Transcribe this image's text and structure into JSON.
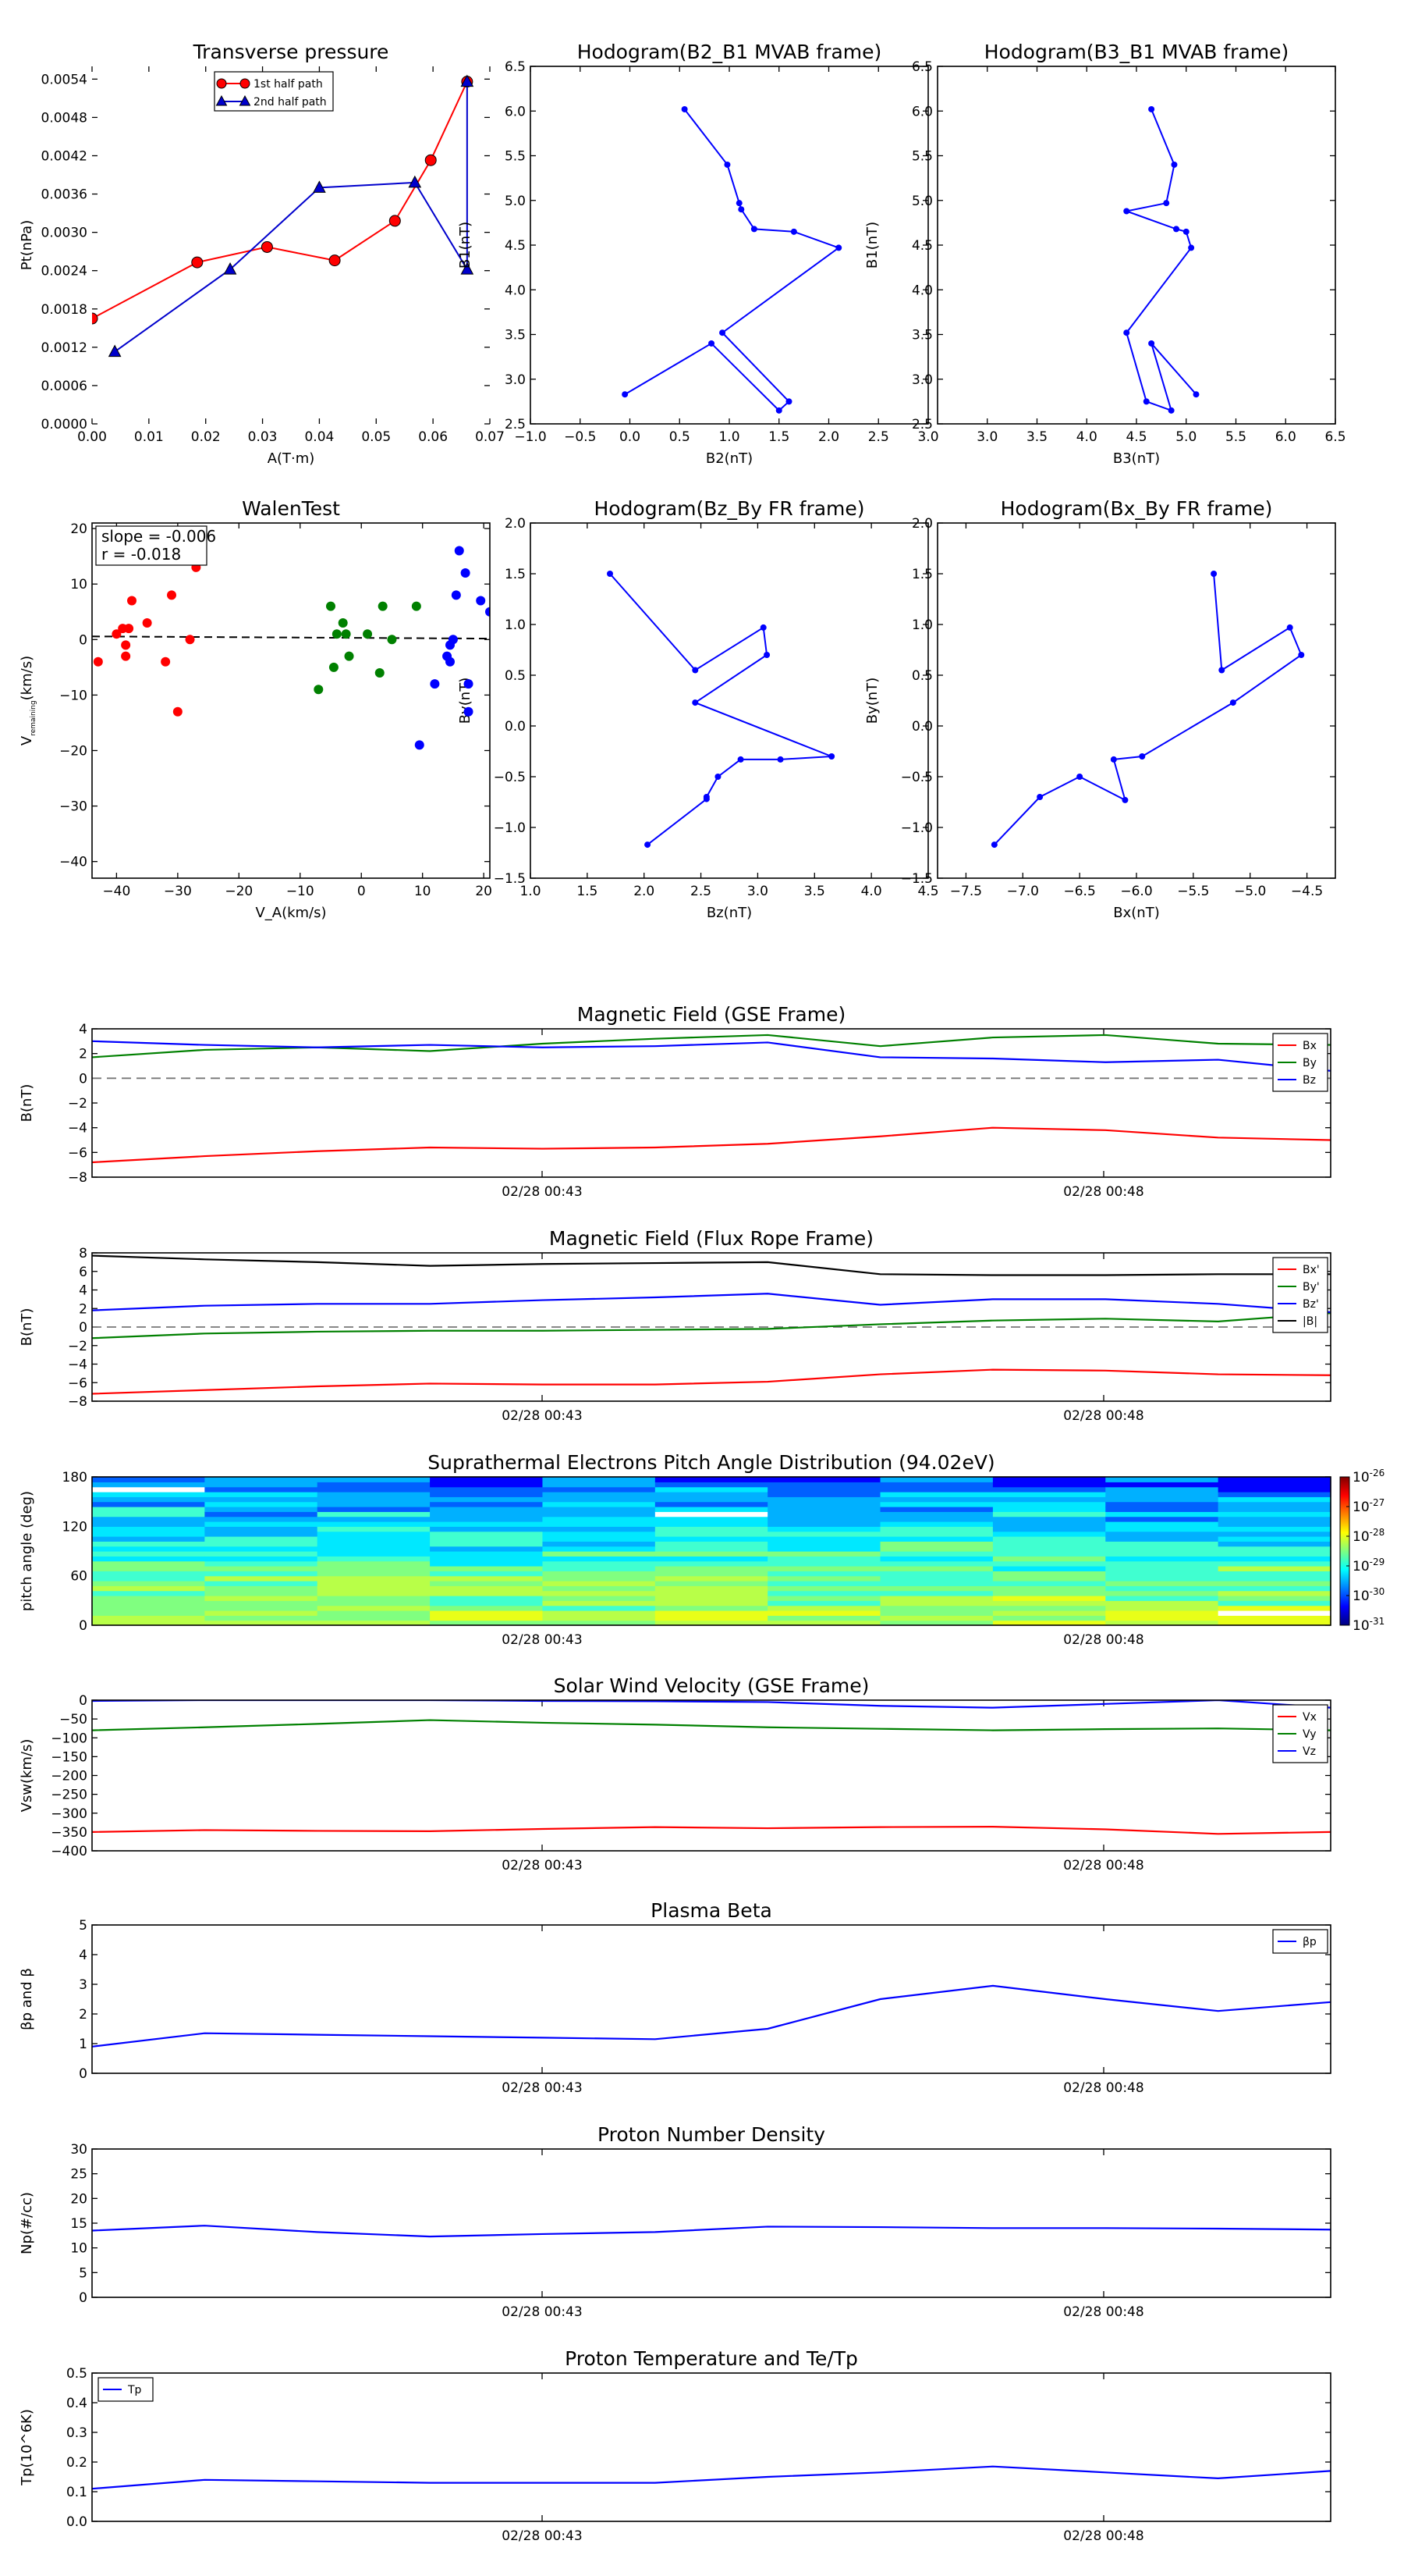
{
  "figure": {
    "time_ticks": [
      "02/28 00:43",
      "02/28 00:48"
    ]
  },
  "chart_data": [
    {
      "id": "transverse-pressure",
      "type": "scatter",
      "title": "Transverse pressure",
      "xlabel": "A(T·m)",
      "ylabel": "Pt(nPa)",
      "xlim": [
        0,
        0.07
      ],
      "ylim": [
        0,
        0.0056
      ],
      "xticks": [
        "0.00",
        "0.01",
        "0.02",
        "0.03",
        "0.04",
        "0.05",
        "0.06",
        "0.07"
      ],
      "yticks": [
        "0.0000",
        "0.0006",
        "0.0012",
        "0.0018",
        "0.0024",
        "0.0030",
        "0.0036",
        "0.0042",
        "0.0048",
        "0.0054"
      ],
      "legend_position": "top-center",
      "series": [
        {
          "name": "1st half path",
          "color": "#ff0000",
          "marker": "circle",
          "x": [
            0.0,
            0.0185,
            0.0308,
            0.0427,
            0.0533,
            0.0596,
            0.066
          ],
          "y": [
            0.00165,
            0.00253,
            0.00277,
            0.00256,
            0.00318,
            0.00413,
            0.00536
          ]
        },
        {
          "name": "2nd half path",
          "color": "#0000cc",
          "marker": "triangle",
          "x": [
            0.066,
            0.066,
            0.0568,
            0.04,
            0.0243,
            0.004
          ],
          "y": [
            0.00536,
            0.00242,
            0.00378,
            0.0037,
            0.00242,
            0.00113
          ]
        }
      ]
    },
    {
      "id": "hodogram-b2-b1",
      "type": "line",
      "title": "Hodogram(B2_B1 MVAB frame)",
      "xlabel": "B2(nT)",
      "ylabel": "B1(nT)",
      "xlim": [
        -1.0,
        3.0
      ],
      "ylim": [
        2.5,
        6.5
      ],
      "xticks": [
        "−1.0",
        "−0.5",
        "0.0",
        "0.5",
        "1.0",
        "1.5",
        "2.0",
        "2.5",
        "3.0"
      ],
      "yticks": [
        "2.5",
        "3.0",
        "3.5",
        "4.0",
        "4.5",
        "5.0",
        "5.5",
        "6.0",
        "6.5"
      ],
      "series": [
        {
          "color": "#0000ff",
          "x": [
            0.55,
            0.98,
            1.1,
            1.12,
            1.25,
            1.65,
            2.1,
            0.93,
            1.6,
            1.5,
            0.82,
            -0.05
          ],
          "y": [
            6.02,
            5.4,
            4.97,
            4.9,
            4.68,
            4.65,
            4.47,
            3.52,
            2.75,
            2.65,
            3.4,
            2.83
          ]
        }
      ]
    },
    {
      "id": "hodogram-b3-b1",
      "type": "line",
      "title": "Hodogram(B3_B1 MVAB frame)",
      "xlabel": "B3(nT)",
      "ylabel": "B1(nT)",
      "xlim": [
        2.5,
        6.5
      ],
      "ylim": [
        2.5,
        6.5
      ],
      "xticks": [
        "3.0",
        "3.5",
        "4.0",
        "4.5",
        "5.0",
        "5.5",
        "6.0",
        "6.5"
      ],
      "yticks": [
        "2.5",
        "3.0",
        "3.5",
        "4.0",
        "4.5",
        "5.0",
        "5.5",
        "6.0",
        "6.5"
      ],
      "series": [
        {
          "color": "#0000ff",
          "x": [
            4.65,
            4.88,
            4.8,
            4.4,
            4.9,
            5.0,
            5.05,
            4.4,
            4.6,
            4.85,
            4.65,
            5.1
          ],
          "y": [
            6.02,
            5.4,
            4.97,
            4.88,
            4.68,
            4.65,
            4.47,
            3.52,
            2.75,
            2.65,
            3.4,
            2.83
          ]
        }
      ]
    },
    {
      "id": "walen-test",
      "type": "scatter",
      "title": "WalenTest",
      "xlabel": "V_A(km/s)",
      "ylabel": "V_remaining(km/s)",
      "xlim": [
        -44,
        21
      ],
      "ylim": [
        -43,
        21
      ],
      "xticks": [
        "−40",
        "−30",
        "−20",
        "−10",
        "0",
        "10",
        "20"
      ],
      "yticks": [
        "−40",
        "−30",
        "−20",
        "−10",
        "0",
        "10",
        "20"
      ],
      "annotation": {
        "slope": "slope = -0.006",
        "r": "r = -0.018"
      },
      "fit_line": {
        "slope": -0.006,
        "intercept": 0.3
      },
      "series": [
        {
          "color": "#ff0000",
          "x": [
            -43,
            -40,
            -39,
            -38.5,
            -38.5,
            -38,
            -37.5,
            -35,
            -32,
            -31,
            -30,
            -28,
            -27
          ],
          "y": [
            -4,
            1,
            2,
            -1,
            -3,
            2,
            7,
            3,
            -4,
            8,
            -13,
            0,
            13
          ]
        },
        {
          "color": "#008000",
          "x": [
            -7,
            -5,
            -4.5,
            -4,
            -3,
            -2.5,
            -2,
            1,
            3,
            3.5,
            5,
            9
          ],
          "y": [
            -9,
            6,
            -5,
            1,
            3,
            1,
            -3,
            1,
            -6,
            6,
            0,
            6
          ]
        },
        {
          "color": "#0000ff",
          "x": [
            9.5,
            12,
            14,
            14.5,
            14.5,
            15,
            15.5,
            16,
            17,
            17.5,
            17.5,
            19.5,
            21
          ],
          "y": [
            -19,
            -8,
            -3,
            -4,
            -1,
            0,
            8,
            16,
            12,
            -8,
            -13,
            7,
            5
          ]
        }
      ]
    },
    {
      "id": "hodogram-bz-by",
      "type": "line",
      "title": "Hodogram(Bz_By FR frame)",
      "xlabel": "Bz(nT)",
      "ylabel": "By(nT)",
      "xlim": [
        1.0,
        4.5
      ],
      "ylim": [
        -1.5,
        2.0
      ],
      "xticks": [
        "1.0",
        "1.5",
        "2.0",
        "2.5",
        "3.0",
        "3.5",
        "4.0",
        "4.5"
      ],
      "yticks": [
        "−1.5",
        "−1.0",
        "−0.5",
        "0.0",
        "0.5",
        "1.0",
        "1.5",
        "2.0"
      ],
      "series": [
        {
          "color": "#0000ff",
          "x": [
            1.7,
            2.45,
            3.05,
            3.08,
            2.45,
            3.65,
            3.2,
            2.85,
            2.65,
            2.55,
            2.55,
            2.03
          ],
          "y": [
            1.5,
            0.55,
            0.97,
            0.7,
            0.23,
            -0.3,
            -0.33,
            -0.33,
            -0.5,
            -0.7,
            -0.72,
            -1.17
          ]
        }
      ]
    },
    {
      "id": "hodogram-bx-by",
      "type": "line",
      "title": "Hodogram(Bx_By FR frame)",
      "xlabel": "Bx(nT)",
      "ylabel": "By(nT)",
      "xlim": [
        -7.75,
        -4.25
      ],
      "ylim": [
        -1.5,
        2.0
      ],
      "xticks": [
        "−7.5",
        "−7.0",
        "−6.5",
        "−6.0",
        "−5.5",
        "−5.0",
        "−4.5"
      ],
      "yticks": [
        "−1.5",
        "−1.0",
        "−0.5",
        "0.0",
        "0.5",
        "1.0",
        "1.5",
        "2.0"
      ],
      "series": [
        {
          "color": "#0000ff",
          "x": [
            -5.32,
            -5.25,
            -4.65,
            -4.55,
            -5.15,
            -5.95,
            -6.2,
            -6.1,
            -6.5,
            -6.85,
            -7.25
          ],
          "y": [
            1.5,
            0.55,
            0.97,
            0.7,
            0.23,
            -0.3,
            -0.33,
            -0.73,
            -0.5,
            -0.7,
            -1.17
          ]
        }
      ]
    },
    {
      "id": "magnetic-field-gse",
      "type": "line",
      "title": "Magnetic Field (GSE Frame)",
      "xlabel": "",
      "ylabel": "B(nT)",
      "ylim": [
        -8,
        4
      ],
      "yticks": [
        "−8",
        "−6",
        "−4",
        "−2",
        "0",
        "2",
        "4"
      ],
      "zero_line": true,
      "legend_position": "top-right",
      "x": [
        0,
        1,
        2,
        3,
        4,
        5,
        6,
        7,
        8,
        9,
        10,
        11
      ],
      "series": [
        {
          "name": "Bx",
          "color": "#ff0000",
          "values": [
            -6.8,
            -6.3,
            -5.9,
            -5.6,
            -5.7,
            -5.6,
            -5.3,
            -4.7,
            -4.0,
            -4.2,
            -4.8,
            -5.0
          ]
        },
        {
          "name": "By",
          "color": "#008000",
          "values": [
            1.7,
            2.3,
            2.5,
            2.2,
            2.8,
            3.2,
            3.5,
            2.6,
            3.3,
            3.5,
            2.8,
            2.7
          ]
        },
        {
          "name": "Bz",
          "color": "#0000ff",
          "values": [
            3.0,
            2.7,
            2.5,
            2.7,
            2.5,
            2.6,
            2.9,
            1.7,
            1.6,
            1.3,
            1.5,
            0.6
          ]
        }
      ]
    },
    {
      "id": "magnetic-field-fr",
      "type": "line",
      "title": "Magnetic Field (Flux Rope Frame)",
      "xlabel": "",
      "ylabel": "B(nT)",
      "ylim": [
        -8,
        8
      ],
      "yticks": [
        "−8",
        "−6",
        "−4",
        "−2",
        "0",
        "2",
        "4",
        "6",
        "8"
      ],
      "zero_line": true,
      "legend_position": "top-right",
      "x": [
        0,
        1,
        2,
        3,
        4,
        5,
        6,
        7,
        8,
        9,
        10,
        11
      ],
      "series": [
        {
          "name": "Bx'",
          "color": "#ff0000",
          "values": [
            -7.2,
            -6.8,
            -6.4,
            -6.1,
            -6.2,
            -6.2,
            -5.9,
            -5.1,
            -4.6,
            -4.7,
            -5.1,
            -5.2
          ]
        },
        {
          "name": "By'",
          "color": "#008000",
          "values": [
            -1.2,
            -0.7,
            -0.5,
            -0.4,
            -0.4,
            -0.3,
            -0.2,
            0.3,
            0.7,
            0.9,
            0.6,
            1.5
          ]
        },
        {
          "name": "Bz'",
          "color": "#0000ff",
          "values": [
            1.8,
            2.3,
            2.5,
            2.5,
            2.9,
            3.2,
            3.6,
            2.4,
            3.0,
            3.0,
            2.5,
            1.6
          ]
        },
        {
          "name": "|B|",
          "color": "#000000",
          "values": [
            7.7,
            7.3,
            7.0,
            6.6,
            6.8,
            6.9,
            7.0,
            5.7,
            5.6,
            5.6,
            5.7,
            5.7
          ]
        }
      ]
    },
    {
      "id": "pitch-angle",
      "type": "heatmap",
      "title": "Suprathermal Electrons Pitch Angle Distribution (94.02eV)",
      "xlabel": "",
      "ylabel": "pitch angle (deg)",
      "ylim": [
        0,
        180
      ],
      "yticks": [
        "0",
        "60",
        "120",
        "180"
      ],
      "colorbar": {
        "min_exp": -31,
        "max_exp": -26,
        "labels": [
          "-31",
          "-30",
          "-29",
          "-28",
          "-27",
          "-26"
        ],
        "base": "10"
      },
      "columns": 11
    },
    {
      "id": "solar-wind-velocity",
      "type": "line",
      "title": "Solar Wind Velocity (GSE Frame)",
      "xlabel": "",
      "ylabel": "Vsw(km/s)",
      "ylim": [
        -400,
        0
      ],
      "yticks": [
        "−400",
        "−350",
        "−300",
        "−250",
        "−200",
        "−150",
        "−100",
        "−50",
        "0"
      ],
      "legend_position": "top-right",
      "x": [
        0,
        1,
        2,
        3,
        4,
        5,
        6,
        7,
        8,
        9,
        10,
        11
      ],
      "series": [
        {
          "name": "Vx",
          "color": "#ff0000",
          "values": [
            -350,
            -345,
            -347,
            -348,
            -342,
            -337,
            -340,
            -337,
            -336,
            -343,
            -355,
            -350
          ]
        },
        {
          "name": "Vy",
          "color": "#008000",
          "values": [
            -80,
            -72,
            -63,
            -53,
            -60,
            -65,
            -72,
            -76,
            -80,
            -77,
            -75,
            -80
          ]
        },
        {
          "name": "Vz",
          "color": "#0000ff",
          "values": [
            -2,
            0,
            0,
            0,
            -2,
            -3,
            -5,
            -15,
            -20,
            -10,
            0,
            -20
          ]
        }
      ]
    },
    {
      "id": "plasma-beta",
      "type": "line",
      "title": "Plasma Beta",
      "xlabel": "",
      "ylabel": "βp and β",
      "ylim": [
        0,
        5
      ],
      "yticks": [
        "0",
        "1",
        "2",
        "3",
        "4",
        "5"
      ],
      "legend_position": "top-right",
      "x": [
        0,
        1,
        2,
        3,
        4,
        5,
        6,
        7,
        8,
        9,
        10,
        11
      ],
      "series": [
        {
          "name": "βp",
          "color": "#0000ff",
          "values": [
            0.9,
            1.35,
            1.3,
            1.25,
            1.2,
            1.15,
            1.5,
            2.5,
            2.95,
            2.5,
            2.1,
            2.4
          ]
        }
      ]
    },
    {
      "id": "proton-density",
      "type": "line",
      "title": "Proton Number Density",
      "xlabel": "",
      "ylabel": "Np(#/cc)",
      "ylim": [
        0,
        30
      ],
      "yticks": [
        "0",
        "5",
        "10",
        "15",
        "20",
        "25",
        "30"
      ],
      "x": [
        0,
        1,
        2,
        3,
        4,
        5,
        6,
        7,
        8,
        9,
        10,
        11
      ],
      "series": [
        {
          "color": "#0000ff",
          "values": [
            13.5,
            14.5,
            13.2,
            12.3,
            12.8,
            13.2,
            14.3,
            14.2,
            14.0,
            14.0,
            13.9,
            13.7
          ]
        }
      ]
    },
    {
      "id": "proton-temperature",
      "type": "line",
      "title": "Proton Temperature and Te/Tp",
      "xlabel": "",
      "ylabel": "Tp(10^6K)",
      "ylim": [
        0,
        0.5
      ],
      "yticks": [
        "0.0",
        "0.1",
        "0.2",
        "0.3",
        "0.4",
        "0.5"
      ],
      "legend_position": "top-left",
      "x": [
        0,
        1,
        2,
        3,
        4,
        5,
        6,
        7,
        8,
        9,
        10,
        11
      ],
      "series": [
        {
          "name": "Tp",
          "color": "#0000ff",
          "values": [
            0.11,
            0.14,
            0.135,
            0.13,
            0.13,
            0.13,
            0.15,
            0.165,
            0.185,
            0.165,
            0.145,
            0.17
          ]
        }
      ]
    }
  ]
}
